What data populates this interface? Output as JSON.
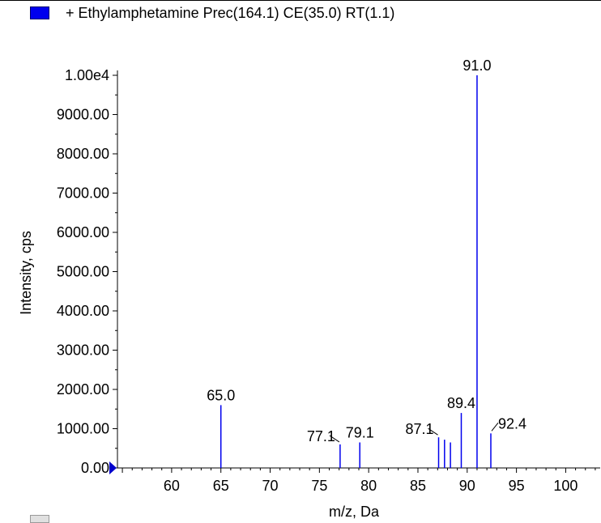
{
  "legend": {
    "label": "+ Ethylamphetamine Prec(164.1) CE(35.0) RT(1.1)",
    "color": "#0000ee"
  },
  "chart_data": {
    "type": "bar",
    "title": "",
    "xlabel": "m/z, Da",
    "ylabel": "Intensity, cps",
    "xlim": [
      54.5,
      103.5
    ],
    "ylim": [
      0,
      10000
    ],
    "x_ticks": [
      {
        "value": 60,
        "label": "60"
      },
      {
        "value": 65,
        "label": "65"
      },
      {
        "value": 70,
        "label": "70"
      },
      {
        "value": 75,
        "label": "75"
      },
      {
        "value": 80,
        "label": "80"
      },
      {
        "value": 85,
        "label": "85"
      },
      {
        "value": 90,
        "label": "90"
      },
      {
        "value": 95,
        "label": "95"
      },
      {
        "value": 100,
        "label": "100"
      }
    ],
    "y_ticks": [
      {
        "value": 0,
        "label": "0.00"
      },
      {
        "value": 1000,
        "label": "1000.00"
      },
      {
        "value": 2000,
        "label": "2000.00"
      },
      {
        "value": 3000,
        "label": "3000.00"
      },
      {
        "value": 4000,
        "label": "4000.00"
      },
      {
        "value": 5000,
        "label": "5000.00"
      },
      {
        "value": 6000,
        "label": "6000.00"
      },
      {
        "value": 7000,
        "label": "7000.00"
      },
      {
        "value": 8000,
        "label": "8000.00"
      },
      {
        "value": 9000,
        "label": "9000.00"
      },
      {
        "value": 10000,
        "label": "1.00e4"
      }
    ],
    "peak_color": "#0000ee",
    "peaks": [
      {
        "mz": 65.0,
        "intensity": 1600,
        "label": "65.0"
      },
      {
        "mz": 77.1,
        "intensity": 600,
        "label": "77.1"
      },
      {
        "mz": 79.1,
        "intensity": 650,
        "label": "79.1"
      },
      {
        "mz": 87.1,
        "intensity": 780,
        "label": "87.1"
      },
      {
        "mz": 87.7,
        "intensity": 720,
        "label": ""
      },
      {
        "mz": 88.3,
        "intensity": 650,
        "label": ""
      },
      {
        "mz": 89.4,
        "intensity": 1400,
        "label": "89.4"
      },
      {
        "mz": 91.0,
        "intensity": 10000,
        "label": "91.0"
      },
      {
        "mz": 92.4,
        "intensity": 880,
        "label": "92.4"
      }
    ]
  }
}
